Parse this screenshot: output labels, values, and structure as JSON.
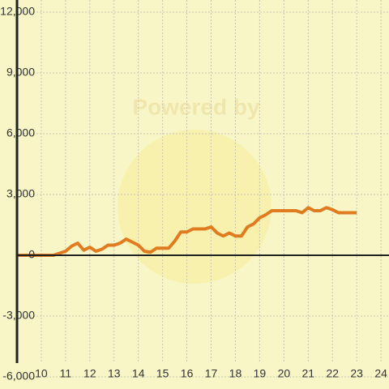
{
  "chart_data": {
    "type": "line",
    "watermark": "Powered by",
    "x": [
      9,
      10.5,
      10.75,
      11,
      11.25,
      11.5,
      11.75,
      12,
      12.25,
      12.5,
      12.75,
      13,
      13.25,
      13.5,
      13.75,
      14,
      14.25,
      14.5,
      14.75,
      15,
      15.25,
      15.5,
      15.75,
      16,
      16.25,
      16.5,
      16.75,
      17,
      17.25,
      17.5,
      17.75,
      18,
      18.25,
      18.5,
      18.75,
      19,
      19.25,
      19.5,
      19.75,
      20,
      20.25,
      20.5,
      20.75,
      21,
      21.25,
      21.5,
      21.75,
      22,
      22.25,
      22.5,
      22.75,
      23
    ],
    "series": [
      {
        "color": "#e07b20",
        "values": [
          0,
          0,
          100,
          200,
          450,
          600,
          250,
          400,
          200,
          300,
          500,
          500,
          600,
          800,
          650,
          500,
          200,
          150,
          350,
          350,
          350,
          700,
          1150,
          1150,
          1300,
          1300,
          1300,
          1400,
          1100,
          950,
          1100,
          950,
          950,
          1400,
          1550,
          1850,
          2000,
          2200,
          2200,
          2200,
          2200,
          2200,
          2100,
          2350,
          2200,
          2200,
          2350,
          2250,
          2100,
          2100,
          2100,
          2100
        ]
      }
    ],
    "xlim": [
      9,
      24.33
    ],
    "xticks": [
      10,
      11,
      12,
      13,
      14,
      15,
      16,
      17,
      18,
      19,
      20,
      21,
      22,
      23,
      24
    ],
    "ylim": [
      -6600,
      12600
    ],
    "yticks": [
      {
        "value": -6000,
        "label": "-6,000"
      },
      {
        "value": -3000,
        "label": "-3,000"
      },
      0,
      {
        "value": 3000,
        "label": "3,000"
      },
      {
        "value": 6000,
        "label": "6,000"
      },
      {
        "value": 9000,
        "label": "9,000"
      },
      {
        "value": 12000,
        "label": "12,000"
      }
    ],
    "grid": true
  }
}
